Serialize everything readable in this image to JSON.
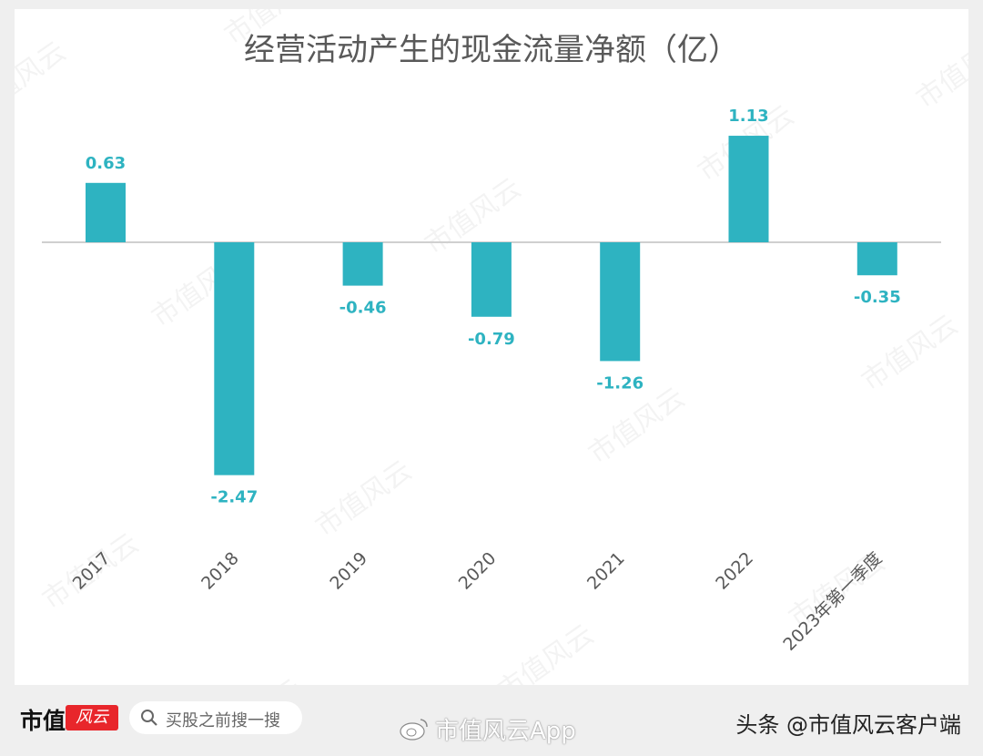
{
  "chart_data": {
    "type": "bar",
    "title": "经营活动产生的现金流量净额（亿）",
    "categories": [
      "2017",
      "2018",
      "2019",
      "2020",
      "2021",
      "2022",
      "2023年第一季度"
    ],
    "values": [
      0.63,
      -2.47,
      -0.46,
      -0.79,
      -1.26,
      1.13,
      -0.35
    ],
    "data_labels": [
      "0.63",
      "-2.47",
      "-0.46",
      "-0.79",
      "-1.26",
      "1.13",
      "-0.35"
    ],
    "bar_color": "#2eb3c1",
    "grid": false,
    "legend": "none"
  },
  "watermark_text": "市值风云",
  "footer": {
    "logo_text": "市值",
    "logo_badge": "风云",
    "search_placeholder": "买股之前搜一搜",
    "center_watermark": "市值风云App",
    "right_credit": "头条 @市值风云客户端"
  }
}
